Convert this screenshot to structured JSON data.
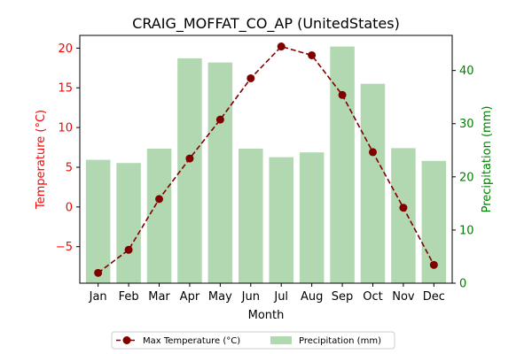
{
  "chart_data": {
    "type": "bar+line",
    "title": "CRAIG_MOFFAT_CO_AP (UnitedStates)",
    "xlabel": "Month",
    "ylabel_left": "Temperature (°C)",
    "ylabel_right": "Precipitation (mm)",
    "categories": [
      "Jan",
      "Feb",
      "Mar",
      "Apr",
      "May",
      "Jun",
      "Jul",
      "Aug",
      "Sep",
      "Oct",
      "Nov",
      "Dec"
    ],
    "temperature": {
      "name": "Max Temperature (°C)",
      "color": "#800000",
      "values": [
        -8.3,
        -5.4,
        1.0,
        6.1,
        11.0,
        16.2,
        20.2,
        19.1,
        14.1,
        6.9,
        -0.1,
        -7.3
      ]
    },
    "precipitation": {
      "name": "Precipitation (mm)",
      "color": "#b2d8b2",
      "values": [
        23.2,
        22.6,
        25.3,
        42.3,
        41.5,
        25.3,
        23.7,
        24.6,
        44.5,
        37.5,
        25.4,
        23.0
      ]
    },
    "left_axis": {
      "min": -9.6,
      "max": 21.6,
      "ticks": [
        -5,
        0,
        5,
        10,
        15,
        20
      ],
      "tick_color": "#ff0000"
    },
    "right_axis": {
      "min": 0,
      "max": 46.6,
      "ticks": [
        0,
        10,
        20,
        30,
        40
      ],
      "tick_color": "#008000"
    },
    "legend": {
      "placement": "bottom-center"
    }
  }
}
